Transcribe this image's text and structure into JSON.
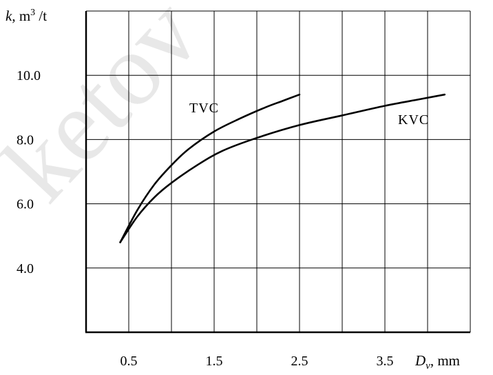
{
  "chart_data": {
    "type": "line",
    "xlabel": {
      "symbol": "D",
      "subscript": "v",
      "unit": ", mm"
    },
    "ylabel": {
      "symbol": "k",
      "unit_prefix": ", m",
      "sup": "3",
      "unit_suffix": " /t"
    },
    "x_ticks": [
      "0.5",
      "1.5",
      "2.5",
      "3.5"
    ],
    "y_ticks": [
      "4.0",
      "6.0",
      "8.0",
      "10.0"
    ],
    "xlim": [
      0,
      4.5
    ],
    "ylim": [
      2.0,
      12.0
    ],
    "grid": true,
    "series": [
      {
        "name": "TVC",
        "points": [
          [
            0.4,
            4.8
          ],
          [
            0.6,
            5.8
          ],
          [
            0.8,
            6.6
          ],
          [
            1.0,
            7.2
          ],
          [
            1.2,
            7.7
          ],
          [
            1.5,
            8.25
          ],
          [
            1.8,
            8.65
          ],
          [
            2.1,
            9.0
          ],
          [
            2.3,
            9.2
          ],
          [
            2.5,
            9.4
          ]
        ]
      },
      {
        "name": "KVC",
        "points": [
          [
            0.4,
            4.8
          ],
          [
            0.6,
            5.6
          ],
          [
            0.8,
            6.2
          ],
          [
            1.0,
            6.65
          ],
          [
            1.3,
            7.2
          ],
          [
            1.6,
            7.65
          ],
          [
            2.0,
            8.05
          ],
          [
            2.5,
            8.45
          ],
          [
            3.0,
            8.75
          ],
          [
            3.5,
            9.05
          ],
          [
            3.9,
            9.25
          ],
          [
            4.2,
            9.4
          ]
        ]
      }
    ]
  },
  "watermark": "ketov"
}
